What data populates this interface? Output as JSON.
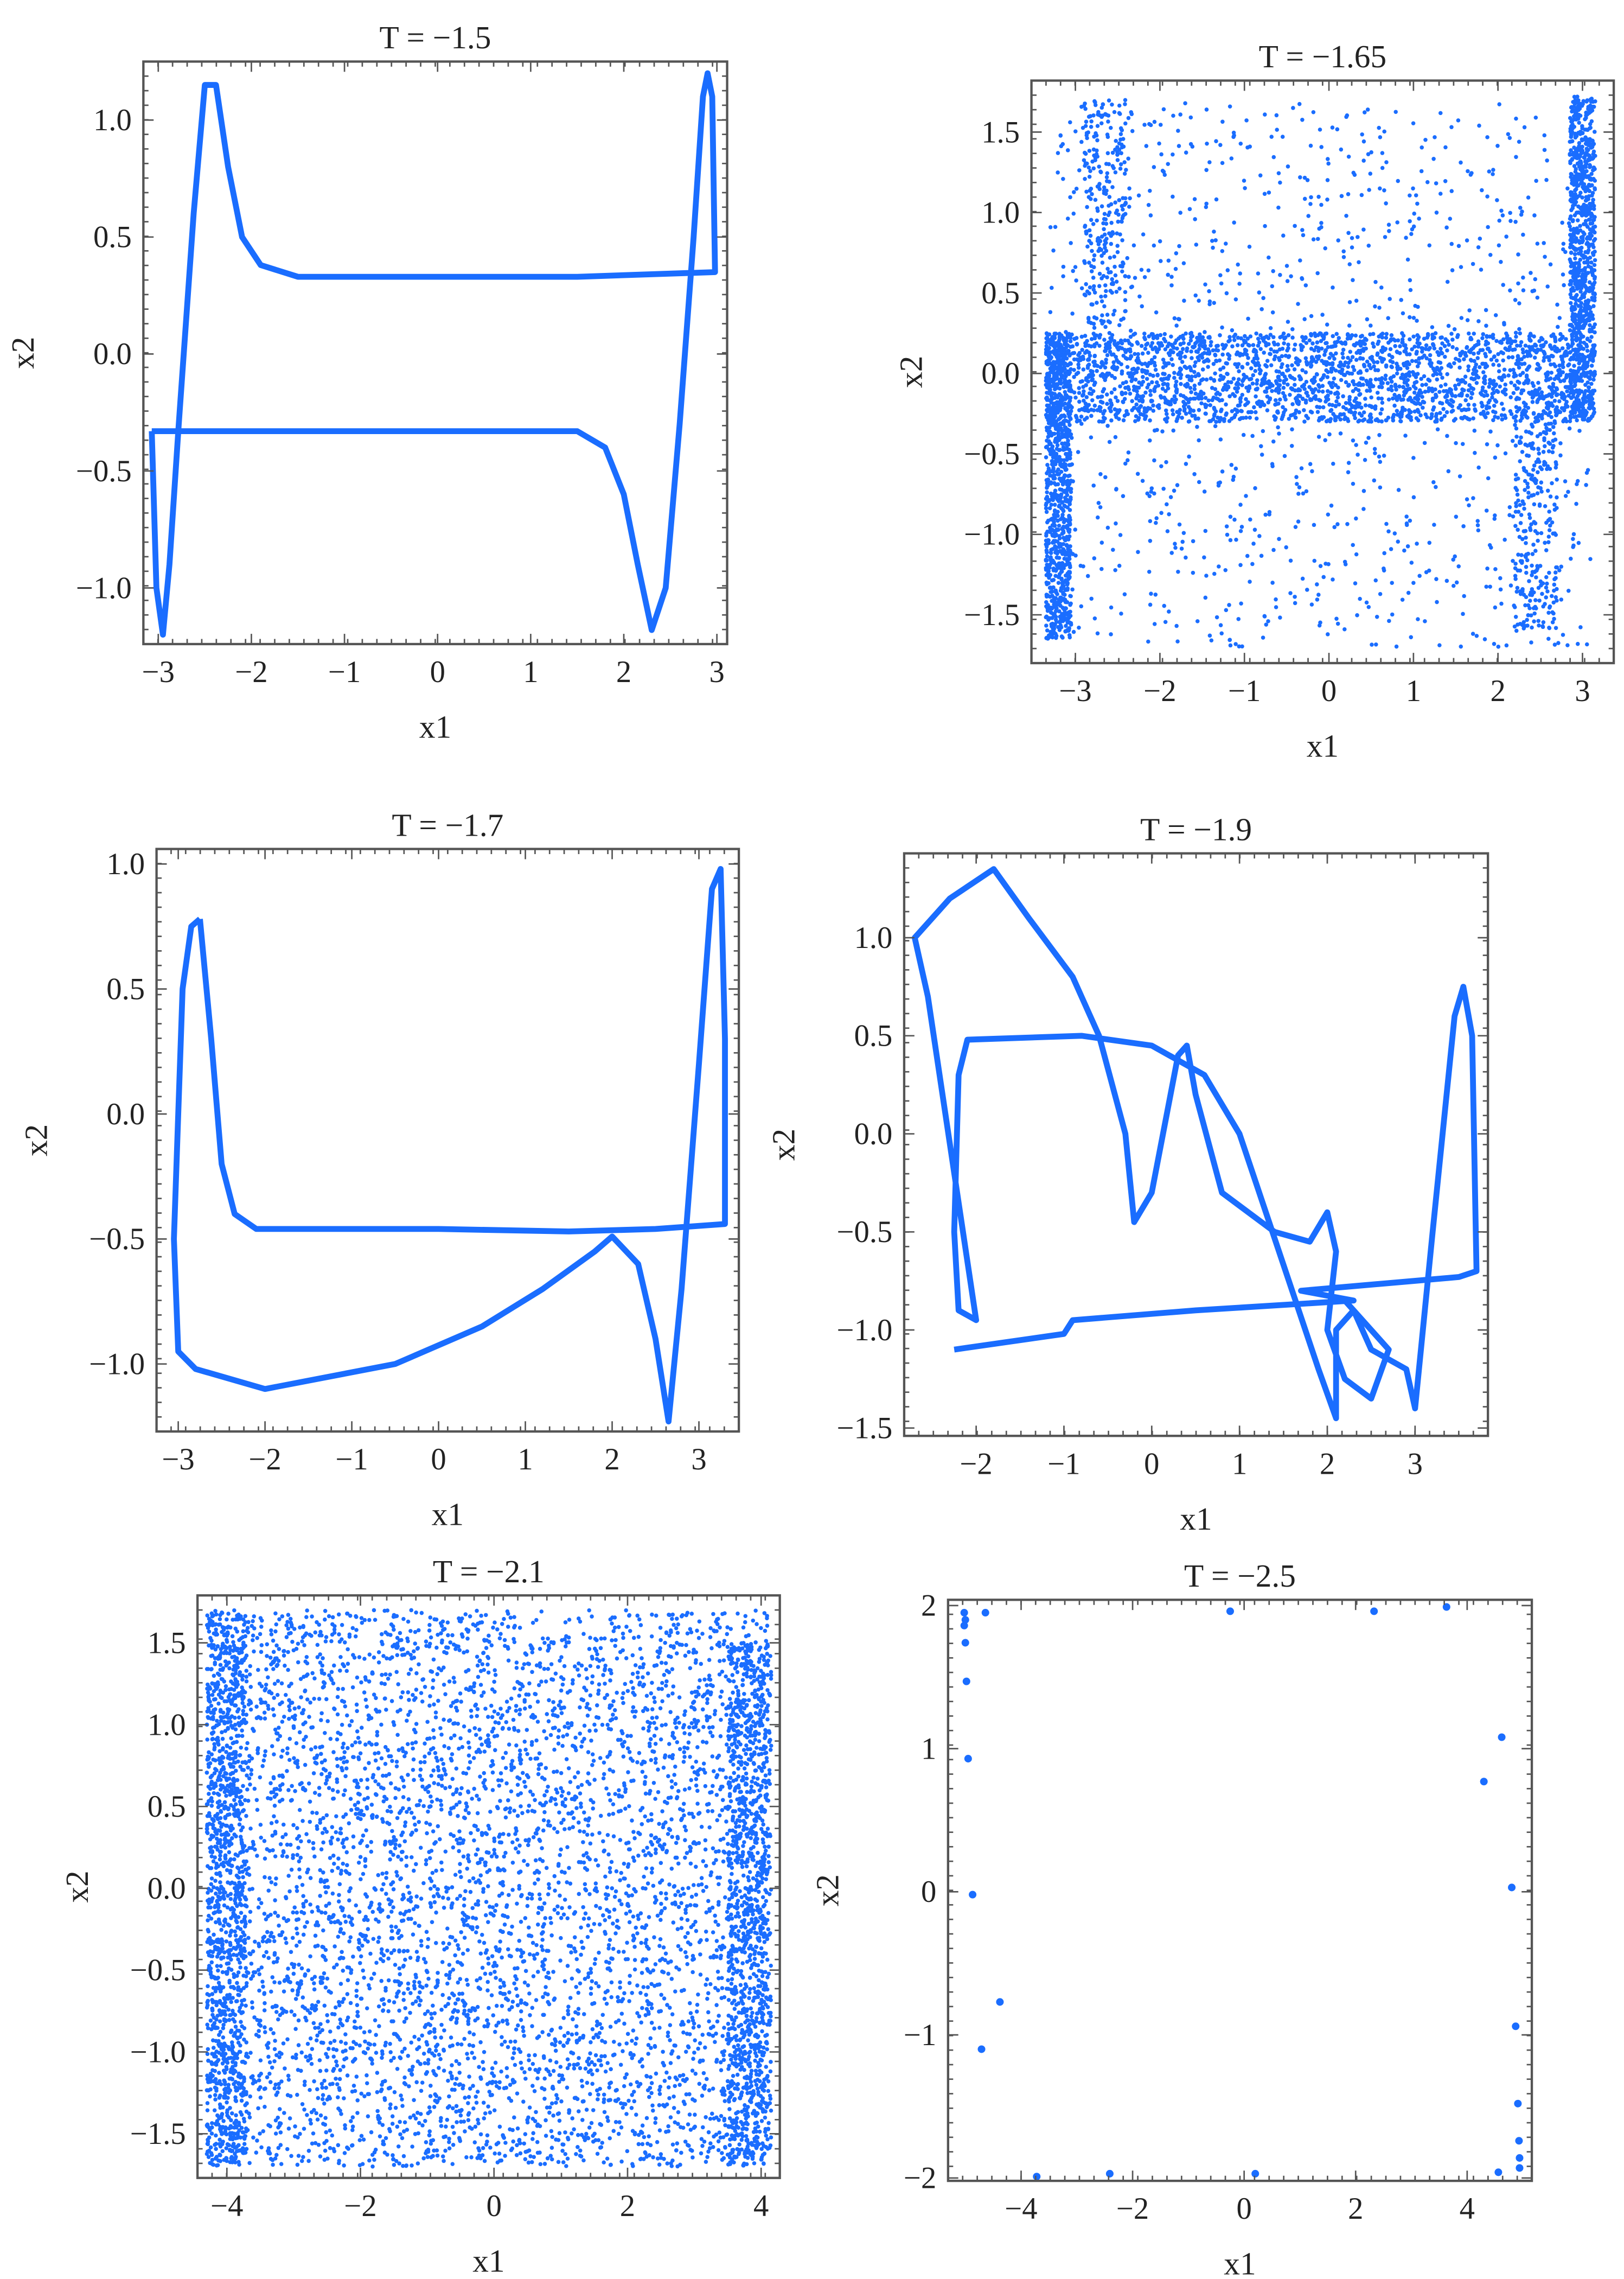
{
  "chart_data": [
    {
      "type": "line",
      "title": "T = −1.5",
      "xlabel": "x1",
      "ylabel": "x2",
      "xlim": [
        -3.16,
        3.11
      ],
      "ylim": [
        -1.24,
        1.25
      ],
      "xticks": [
        -3,
        -2,
        -1,
        0,
        1,
        2,
        3
      ],
      "xtick_labels": [
        "−3",
        "−2",
        "−1",
        "0",
        "1",
        "2",
        "3"
      ],
      "yticks": [
        -1,
        -0.5,
        0,
        0.5,
        1
      ],
      "ytick_labels": [
        "−1.0",
        "−0.5",
        "0.0",
        "0.5",
        "1.0"
      ],
      "color": "#1a6dff",
      "points": [
        [
          -3.07,
          -0.33
        ],
        [
          1.5,
          -0.33
        ],
        [
          1.8,
          -0.4
        ],
        [
          2.0,
          -0.6
        ],
        [
          2.15,
          -0.9
        ],
        [
          2.3,
          -1.18
        ],
        [
          2.45,
          -1.0
        ],
        [
          2.6,
          -0.3
        ],
        [
          2.75,
          0.5
        ],
        [
          2.85,
          1.1
        ],
        [
          2.9,
          1.2
        ],
        [
          2.95,
          1.1
        ],
        [
          2.98,
          0.35
        ],
        [
          1.5,
          0.33
        ],
        [
          -1.5,
          0.33
        ],
        [
          -1.9,
          0.38
        ],
        [
          -2.1,
          0.5
        ],
        [
          -2.25,
          0.8
        ],
        [
          -2.38,
          1.15
        ],
        [
          -2.5,
          1.15
        ],
        [
          -2.62,
          0.6
        ],
        [
          -2.78,
          -0.3
        ],
        [
          -2.88,
          -0.9
        ],
        [
          -2.95,
          -1.2
        ],
        [
          -3.02,
          -1.0
        ],
        [
          -3.07,
          -0.33
        ]
      ]
    },
    {
      "type": "scatter",
      "title": "T = −1.65",
      "xlabel": "x1",
      "ylabel": "x2",
      "xlim": [
        -3.52,
        3.37
      ],
      "ylim": [
        -1.8,
        1.82
      ],
      "xticks": [
        -3,
        -2,
        -1,
        0,
        1,
        2,
        3
      ],
      "xtick_labels": [
        "−3",
        "−2",
        "−1",
        "0",
        "1",
        "2",
        "3"
      ],
      "yticks": [
        -1.5,
        -1,
        -0.5,
        0,
        0.5,
        1,
        1.5
      ],
      "ytick_labels": [
        "−1.5",
        "−1.0",
        "−0.5",
        "0.0",
        "0.5",
        "1.0",
        "1.5"
      ],
      "color": "#1a6dff",
      "clusters": [
        {
          "x": [
            -3.35,
            2.95
          ],
          "y": [
            -0.3,
            0.25
          ],
          "n": 2200
        },
        {
          "x": [
            -3.35,
            -3.05
          ],
          "y": [
            -1.65,
            0.25
          ],
          "n": 900
        },
        {
          "x": [
            2.85,
            3.15
          ],
          "y": [
            -0.3,
            1.72
          ],
          "n": 900
        },
        {
          "x": [
            -2.9,
            -2.4
          ],
          "y": [
            0.3,
            1.7
          ],
          "n": 250
        },
        {
          "x": [
            2.2,
            2.7
          ],
          "y": [
            -1.6,
            -0.3
          ],
          "n": 250
        },
        {
          "x": [
            -3.3,
            3.1
          ],
          "y": [
            -1.7,
            1.7
          ],
          "n": 1100
        }
      ]
    },
    {
      "type": "line",
      "title": "T = −1.7",
      "xlabel": "x1",
      "ylabel": "x2",
      "xlim": [
        -3.25,
        3.46
      ],
      "ylim": [
        -1.27,
        1.06
      ],
      "xticks": [
        -3,
        -2,
        -1,
        0,
        1,
        2,
        3
      ],
      "xtick_labels": [
        "−3",
        "−2",
        "−1",
        "0",
        "1",
        "2",
        "3"
      ],
      "yticks": [
        -1,
        -0.5,
        0,
        0.5,
        1
      ],
      "ytick_labels": [
        "−1.0",
        "−0.5",
        "0.0",
        "0.5",
        "1.0"
      ],
      "color": "#1a6dff",
      "points": [
        [
          -2.75,
          0.78
        ],
        [
          -2.62,
          0.3
        ],
        [
          -2.5,
          -0.2
        ],
        [
          -2.35,
          -0.4
        ],
        [
          -2.1,
          -0.46
        ],
        [
          0,
          -0.46
        ],
        [
          1.5,
          -0.47
        ],
        [
          2.5,
          -0.46
        ],
        [
          3.3,
          -0.44
        ],
        [
          3.3,
          0.3
        ],
        [
          3.25,
          0.98
        ],
        [
          3.15,
          0.9
        ],
        [
          3.0,
          0.2
        ],
        [
          2.8,
          -0.7
        ],
        [
          2.65,
          -1.23
        ],
        [
          2.5,
          -0.9
        ],
        [
          2.3,
          -0.6
        ],
        [
          2.0,
          -0.49
        ],
        [
          1.8,
          -0.55
        ],
        [
          1.2,
          -0.7
        ],
        [
          0.5,
          -0.85
        ],
        [
          -0.5,
          -1.0
        ],
        [
          -2.0,
          -1.1
        ],
        [
          -2.8,
          -1.02
        ],
        [
          -3.0,
          -0.95
        ],
        [
          -3.05,
          -0.5
        ],
        [
          -3.0,
          0
        ],
        [
          -2.95,
          0.5
        ],
        [
          -2.85,
          0.75
        ],
        [
          -2.75,
          0.78
        ]
      ]
    },
    {
      "type": "line",
      "title": "T = −1.9",
      "xlabel": "x1",
      "ylabel": "x2",
      "xlim": [
        -2.82,
        3.83
      ],
      "ylim": [
        -1.54,
        1.43
      ],
      "xticks": [
        -2,
        -1,
        0,
        1,
        2,
        3
      ],
      "xtick_labels": [
        "−2",
        "−1",
        "0",
        "1",
        "2",
        "3"
      ],
      "yticks": [
        -1.5,
        -1,
        -0.5,
        0,
        0.5,
        1
      ],
      "ytick_labels": [
        "−1.5",
        "−1.0",
        "−0.5",
        "0.0",
        "0.5",
        "1.0"
      ],
      "color": "#1a6dff",
      "points": [
        [
          -2.25,
          -1.1
        ],
        [
          -1.0,
          -1.02
        ],
        [
          -0.9,
          -0.95
        ],
        [
          0.5,
          -0.9
        ],
        [
          2.3,
          -0.85
        ],
        [
          1.7,
          -0.8
        ],
        [
          3.5,
          -0.73
        ],
        [
          3.7,
          -0.7
        ],
        [
          3.65,
          0.5
        ],
        [
          3.55,
          0.75
        ],
        [
          3.45,
          0.6
        ],
        [
          3.2,
          -0.5
        ],
        [
          3.0,
          -1.4
        ],
        [
          2.9,
          -1.2
        ],
        [
          2.5,
          -1.1
        ],
        [
          2.3,
          -0.9
        ],
        [
          2.1,
          -1.0
        ],
        [
          2.1,
          -1.45
        ],
        [
          1.9,
          -1.2
        ],
        [
          1.6,
          -0.8
        ],
        [
          1.3,
          -0.4
        ],
        [
          1.0,
          0.0
        ],
        [
          0.6,
          0.3
        ],
        [
          0.0,
          0.45
        ],
        [
          -0.8,
          0.5
        ],
        [
          -2.1,
          0.48
        ],
        [
          -2.2,
          0.3
        ],
        [
          -2.25,
          -0.5
        ],
        [
          -2.2,
          -0.9
        ],
        [
          -2.0,
          -0.95
        ],
        [
          -2.55,
          0.7
        ],
        [
          -2.7,
          1.0
        ],
        [
          -2.3,
          1.2
        ],
        [
          -1.8,
          1.35
        ],
        [
          -1.4,
          1.1
        ],
        [
          -0.9,
          0.8
        ],
        [
          -0.6,
          0.5
        ],
        [
          -0.3,
          0.0
        ],
        [
          -0.2,
          -0.45
        ],
        [
          0.0,
          -0.3
        ],
        [
          0.3,
          0.4
        ],
        [
          0.4,
          0.45
        ],
        [
          0.5,
          0.2
        ],
        [
          0.8,
          -0.3
        ],
        [
          1.4,
          -0.5
        ],
        [
          1.8,
          -0.55
        ],
        [
          2.0,
          -0.4
        ],
        [
          2.1,
          -0.6
        ],
        [
          2.0,
          -1.0
        ],
        [
          2.2,
          -1.25
        ],
        [
          2.5,
          -1.35
        ],
        [
          2.7,
          -1.1
        ],
        [
          2.2,
          -0.85
        ]
      ]
    },
    {
      "type": "scatter",
      "title": "T = −2.1",
      "xlabel": "x1",
      "ylabel": "x2",
      "xlim": [
        -4.44,
        4.28
      ],
      "ylim": [
        -1.77,
        1.79
      ],
      "xticks": [
        -4,
        -2,
        0,
        2,
        4
      ],
      "xtick_labels": [
        "−4",
        "−2",
        "0",
        "2",
        "4"
      ],
      "yticks": [
        -1.5,
        -1,
        -0.5,
        0,
        0.5,
        1,
        1.5
      ],
      "ytick_labels": [
        "−1.5",
        "−1.0",
        "−0.5",
        "0.0",
        "0.5",
        "1.0",
        "1.5"
      ],
      "color": "#1a6dff",
      "clusters": [
        {
          "x": [
            -4.3,
            4.1
          ],
          "y": [
            -1.7,
            1.7
          ],
          "n": 5200
        },
        {
          "x": [
            -4.3,
            -3.7
          ],
          "y": [
            -1.7,
            1.7
          ],
          "n": 1000
        },
        {
          "x": [
            3.5,
            4.15
          ],
          "y": [
            -1.7,
            1.5
          ],
          "n": 1000
        }
      ]
    },
    {
      "type": "scatter",
      "title": "T = −2.5",
      "xlabel": "x1",
      "ylabel": "x2",
      "xlim": [
        -5.31,
        5.16
      ],
      "ylim": [
        -2.02,
        2.04
      ],
      "xticks": [
        -4,
        -2,
        0,
        2,
        4
      ],
      "xtick_labels": [
        "−4",
        "−2",
        "0",
        "2",
        "4"
      ],
      "yticks": [
        -2,
        -1,
        0,
        1,
        2
      ],
      "ytick_labels": [
        "−2",
        "−1",
        "0",
        "1",
        "2"
      ],
      "color": "#1a6dff",
      "points": [
        [
          -5.02,
          1.95
        ],
        [
          -5.0,
          1.9
        ],
        [
          -5.02,
          1.86
        ],
        [
          -5.0,
          1.74
        ],
        [
          -4.98,
          1.47
        ],
        [
          -4.95,
          0.93
        ],
        [
          -4.87,
          -0.02
        ],
        [
          -4.64,
          1.95
        ],
        [
          -4.38,
          -0.77
        ],
        [
          -4.71,
          -1.1
        ],
        [
          -3.72,
          -1.99
        ],
        [
          -2.41,
          -1.97
        ],
        [
          -0.25,
          1.96
        ],
        [
          0.2,
          -1.97
        ],
        [
          2.33,
          1.96
        ],
        [
          3.63,
          1.99
        ],
        [
          4.62,
          1.08
        ],
        [
          4.3,
          0.77
        ],
        [
          4.8,
          0.03
        ],
        [
          4.87,
          -0.94
        ],
        [
          4.91,
          -1.48
        ],
        [
          4.93,
          -1.74
        ],
        [
          4.94,
          -1.86
        ],
        [
          4.94,
          -1.93
        ],
        [
          4.56,
          -1.96
        ]
      ]
    }
  ]
}
